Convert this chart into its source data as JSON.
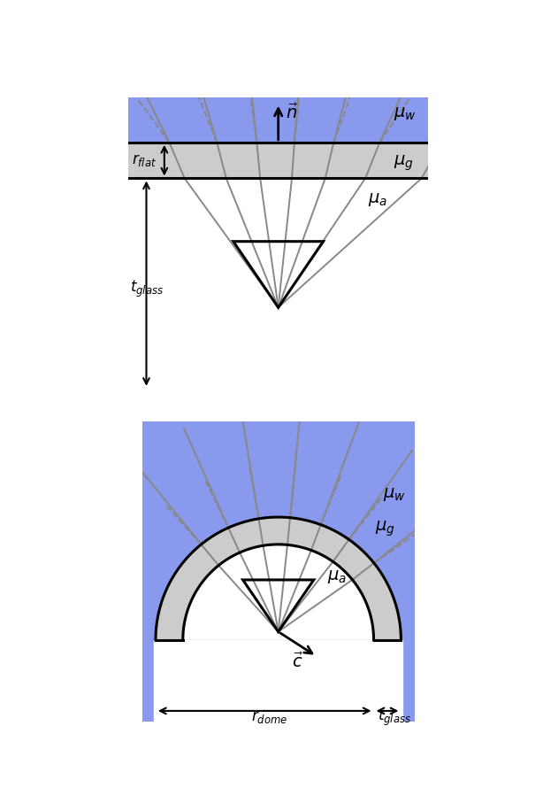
{
  "fig_width": 6.14,
  "fig_height": 9.16,
  "bg_color": "#ffffff",
  "water_color": "#8899ee",
  "glass_color": "#cccccc",
  "ray_color": "#888888",
  "ray_lw": 1.4,
  "border_lw": 2.2,
  "label_mu_w": "$\\mu_w$",
  "label_mu_g": "$\\mu_g$",
  "label_mu_a": "$\\mu_a$",
  "label_r_flat": "$r_{flat}$",
  "label_t_glass": "$t_{glass}$",
  "label_n_vec": "$\\vec{n}$",
  "label_c_vec": "$\\vec{c}$",
  "label_r_dome": "$r_{dome}$",
  "label_t_glass2": "$t_{glass}$"
}
